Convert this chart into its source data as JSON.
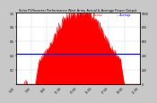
{
  "title": "Solar PV/Inverter Performance West Array Actual & Average Power Output",
  "bg_color": "#c8c8c8",
  "plot_bg_color": "#ffffff",
  "bar_color": "#ff0000",
  "avg_line_color": "#0000ff",
  "avg_line_value": 0.42,
  "grid_color": "#aaaaaa",
  "ylim": [
    0,
    1.0
  ],
  "num_points": 288,
  "x_tick_labels": [
    "5:00",
    "7:00",
    "9:00",
    "11:00",
    "13:00",
    "15:00",
    "17:00",
    "19:00",
    "21:00"
  ],
  "ylabel_right": [
    "1.0",
    "0.8",
    "0.6",
    "0.4",
    "0.2",
    "0.0"
  ],
  "ylabel_left": [
    "1.0",
    "0.8",
    "0.6",
    "0.4",
    "0.2",
    ""
  ],
  "legend_actual_color": "#ff0000",
  "legend_avg_color": "#0000ff",
  "legend_actual_label": "-- Actual",
  "legend_avg_label": "-- Average"
}
